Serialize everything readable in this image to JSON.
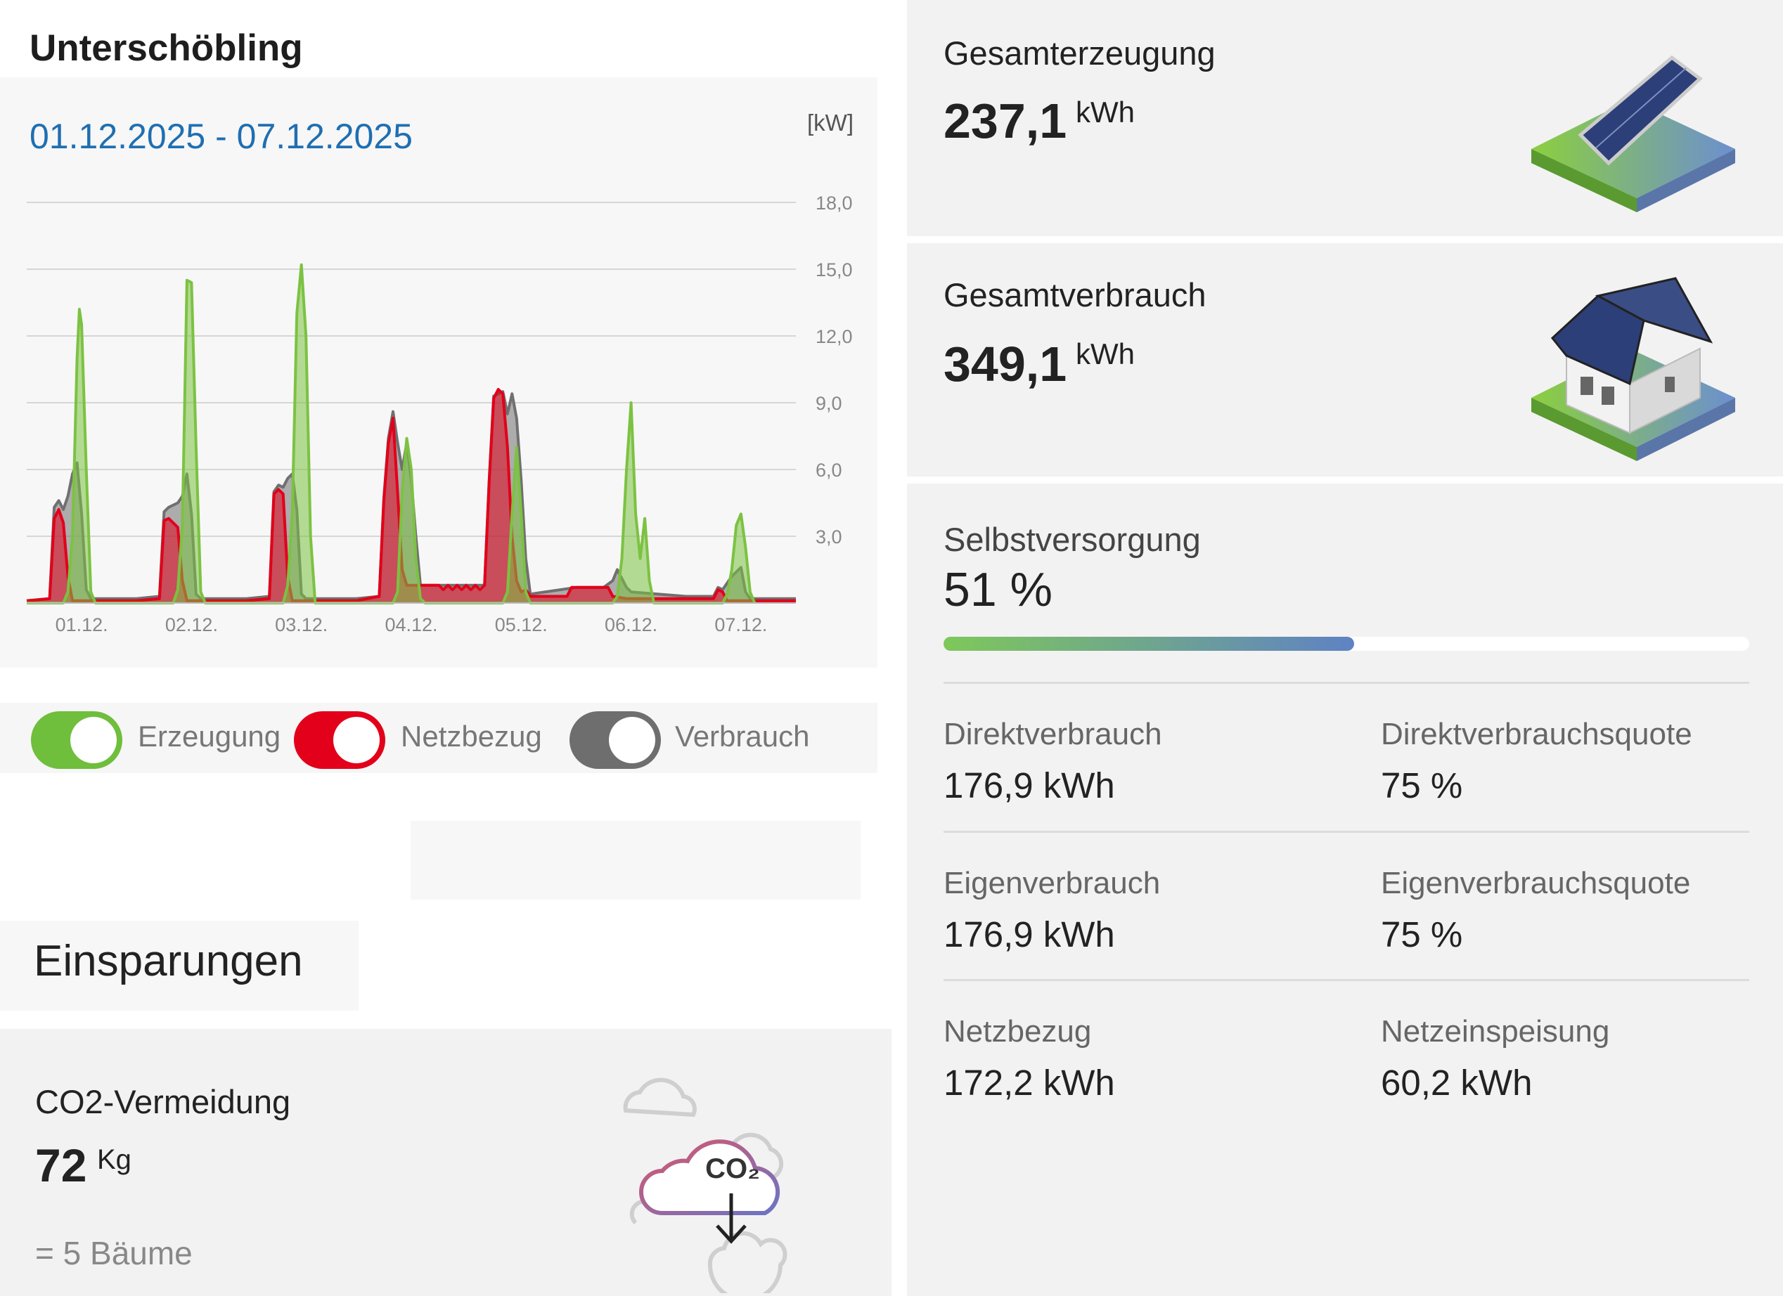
{
  "site": {
    "title": "Unterschöbling"
  },
  "chart_card": {
    "date_range": "01.12.2025 - 07.12.2025",
    "unit": "[kW]"
  },
  "chart_data": {
    "type": "area",
    "x_unit": "hours since 01.12. 00:00",
    "xlim": [
      0,
      168
    ],
    "ylim": [
      0,
      18
    ],
    "y_ticks": [
      "3,0",
      "6,0",
      "9,0",
      "12,0",
      "15,0",
      "18,0"
    ],
    "categories": [
      "01.12.",
      "02.12.",
      "03.12.",
      "04.12.",
      "05.12.",
      "06.12.",
      "07.12."
    ],
    "grid": true,
    "series": [
      {
        "name": "Verbrauch",
        "color": "#707070",
        "points": [
          [
            0,
            0.1
          ],
          [
            5,
            0.2
          ],
          [
            6,
            4.3
          ],
          [
            7,
            4.6
          ],
          [
            8,
            4.2
          ],
          [
            9,
            4.8
          ],
          [
            10,
            5.8
          ],
          [
            11,
            6.3
          ],
          [
            12,
            4
          ],
          [
            13,
            0.6
          ],
          [
            14,
            0.2
          ],
          [
            24,
            0.2
          ],
          [
            29,
            0.3
          ],
          [
            30,
            4.1
          ],
          [
            31,
            4.3
          ],
          [
            33,
            4.5
          ],
          [
            34,
            4.8
          ],
          [
            35,
            5.8
          ],
          [
            36,
            4
          ],
          [
            37,
            0.4
          ],
          [
            38,
            0.2
          ],
          [
            48,
            0.2
          ],
          [
            53,
            0.3
          ],
          [
            54,
            5
          ],
          [
            55,
            5.3
          ],
          [
            56,
            5.2
          ],
          [
            57,
            5.6
          ],
          [
            58,
            5.8
          ],
          [
            59,
            4.2
          ],
          [
            60,
            0.4
          ],
          [
            61,
            0.2
          ],
          [
            72,
            0.2
          ],
          [
            77,
            0.3
          ],
          [
            78,
            4.7
          ],
          [
            79,
            7.4
          ],
          [
            80,
            8.6
          ],
          [
            81,
            7.2
          ],
          [
            82,
            6
          ],
          [
            83,
            7.2
          ],
          [
            84,
            5.5
          ],
          [
            85,
            3
          ],
          [
            86,
            0.8
          ],
          [
            87,
            0.8
          ],
          [
            96,
            0.8
          ],
          [
            100,
            0.8
          ],
          [
            101,
            5.5
          ],
          [
            102,
            9.3
          ],
          [
            103,
            9.4
          ],
          [
            104,
            9.5
          ],
          [
            105,
            8.5
          ],
          [
            106,
            9.4
          ],
          [
            107,
            8.3
          ],
          [
            108,
            5.5
          ],
          [
            109,
            2
          ],
          [
            110,
            0.4
          ],
          [
            120,
            0.7
          ],
          [
            126,
            0.7
          ],
          [
            128,
            1
          ],
          [
            129,
            1.5
          ],
          [
            130,
            1.1
          ],
          [
            131,
            0.7
          ],
          [
            132,
            0.5
          ],
          [
            144,
            0.3
          ],
          [
            150,
            0.3
          ],
          [
            151,
            0.7
          ],
          [
            152,
            0.6
          ],
          [
            154,
            1.2
          ],
          [
            156,
            1.6
          ],
          [
            157,
            0.5
          ],
          [
            158,
            0.2
          ],
          [
            168,
            0.2
          ]
        ]
      },
      {
        "name": "Netzbezug",
        "color": "#e2001a",
        "points": [
          [
            0,
            0.1
          ],
          [
            5,
            0.2
          ],
          [
            6,
            3.8
          ],
          [
            7,
            4.2
          ],
          [
            8,
            3.6
          ],
          [
            9,
            1.2
          ],
          [
            10,
            0.1
          ],
          [
            24,
            0.1
          ],
          [
            29,
            0.2
          ],
          [
            30,
            3.7
          ],
          [
            31,
            3.8
          ],
          [
            33,
            3.4
          ],
          [
            34,
            1
          ],
          [
            35,
            0.1
          ],
          [
            48,
            0.1
          ],
          [
            53,
            0.2
          ],
          [
            54,
            4.9
          ],
          [
            55,
            5.1
          ],
          [
            56,
            4.9
          ],
          [
            57,
            1.2
          ],
          [
            58,
            0.1
          ],
          [
            72,
            0.1
          ],
          [
            77,
            0.3
          ],
          [
            78,
            4.6
          ],
          [
            79,
            7.2
          ],
          [
            80,
            8.3
          ],
          [
            81,
            5
          ],
          [
            82,
            1.5
          ],
          [
            83,
            0.8
          ],
          [
            90,
            0.8
          ],
          [
            91,
            0.6
          ],
          [
            92,
            0.8
          ],
          [
            93,
            0.6
          ],
          [
            94,
            0.8
          ],
          [
            95,
            0.6
          ],
          [
            96,
            0.8
          ],
          [
            97,
            0.6
          ],
          [
            98,
            0.8
          ],
          [
            99,
            0.6
          ],
          [
            100,
            0.8
          ],
          [
            101,
            5.4
          ],
          [
            102,
            9.2
          ],
          [
            103,
            9.6
          ],
          [
            104,
            9.4
          ],
          [
            105,
            7
          ],
          [
            106,
            3
          ],
          [
            107,
            1
          ],
          [
            108,
            0.5
          ],
          [
            109,
            0.6
          ],
          [
            110,
            0.3
          ],
          [
            118,
            0.3
          ],
          [
            119,
            0.7
          ],
          [
            127,
            0.7
          ],
          [
            128,
            0.3
          ],
          [
            131,
            0.2
          ],
          [
            144,
            0.2
          ],
          [
            150,
            0.2
          ],
          [
            151,
            0.6
          ],
          [
            152,
            0.5
          ],
          [
            153,
            0.1
          ],
          [
            168,
            0.1
          ]
        ]
      },
      {
        "name": "Erzeugung",
        "color": "#7cc242",
        "points": [
          [
            0,
            0
          ],
          [
            8,
            0
          ],
          [
            9,
            0.5
          ],
          [
            10,
            3
          ],
          [
            11,
            11
          ],
          [
            11.5,
            13.2
          ],
          [
            12,
            12.5
          ],
          [
            13,
            6
          ],
          [
            14,
            0.5
          ],
          [
            15,
            0
          ],
          [
            32,
            0
          ],
          [
            33,
            0.6
          ],
          [
            34,
            3.5
          ],
          [
            35,
            14.5
          ],
          [
            36,
            14.4
          ],
          [
            37,
            7
          ],
          [
            38,
            0.5
          ],
          [
            39,
            0
          ],
          [
            56,
            0
          ],
          [
            57,
            0.8
          ],
          [
            58,
            4
          ],
          [
            59,
            13
          ],
          [
            60,
            15.2
          ],
          [
            61,
            12
          ],
          [
            62,
            3
          ],
          [
            63,
            0
          ],
          [
            80,
            0
          ],
          [
            81,
            0.5
          ],
          [
            82,
            5
          ],
          [
            83,
            7.4
          ],
          [
            84,
            6
          ],
          [
            85,
            2
          ],
          [
            86,
            0.2
          ],
          [
            87,
            0
          ],
          [
            104,
            0
          ],
          [
            105,
            0.5
          ],
          [
            106,
            4
          ],
          [
            107,
            7
          ],
          [
            108,
            4
          ],
          [
            109,
            0.5
          ],
          [
            110,
            0
          ],
          [
            128,
            0
          ],
          [
            129,
            0.3
          ],
          [
            130,
            2
          ],
          [
            131,
            6
          ],
          [
            132,
            9
          ],
          [
            133,
            4
          ],
          [
            134,
            2
          ],
          [
            135,
            3.8
          ],
          [
            136,
            1
          ],
          [
            137,
            0
          ],
          [
            152,
            0
          ],
          [
            153,
            0.4
          ],
          [
            154,
            1.5
          ],
          [
            155,
            3.5
          ],
          [
            156,
            4
          ],
          [
            157,
            2.5
          ],
          [
            158,
            0.5
          ],
          [
            159,
            0
          ]
        ]
      }
    ]
  },
  "legend": {
    "items": [
      {
        "label": "Erzeugung",
        "color": "#6fbe3c"
      },
      {
        "label": "Netzbezug",
        "color": "#e2001a"
      },
      {
        "label": "Verbrauch",
        "color": "#6e6e6e"
      }
    ]
  },
  "savings": {
    "title": "Einsparungen",
    "co2": {
      "label": "CO2-Vermeidung",
      "value": "72",
      "unit": "Kg",
      "trees": "= 5 Bäume",
      "icon_text": "CO₂"
    }
  },
  "generation": {
    "label": "Gesamterzeugung",
    "value": "237,1",
    "unit": "kWh"
  },
  "consumption": {
    "label": "Gesamtverbrauch",
    "value": "349,1",
    "unit": "kWh"
  },
  "self_supply": {
    "label": "Selbstversorgung",
    "value": "51 %",
    "bar_fraction": 0.51,
    "rows": [
      [
        {
          "label": "Direktverbrauch",
          "value": "176,9 kWh"
        },
        {
          "label": "Direktverbrauchsquote",
          "value": "75 %"
        }
      ],
      [
        {
          "label": "Eigenverbrauch",
          "value": "176,9 kWh"
        },
        {
          "label": "Eigenverbrauchsquote",
          "value": "75 %"
        }
      ],
      [
        {
          "label": "Netzbezug",
          "value": "172,2 kWh"
        },
        {
          "label": "Netzeinspeisung",
          "value": "60,2 kWh"
        }
      ]
    ]
  }
}
